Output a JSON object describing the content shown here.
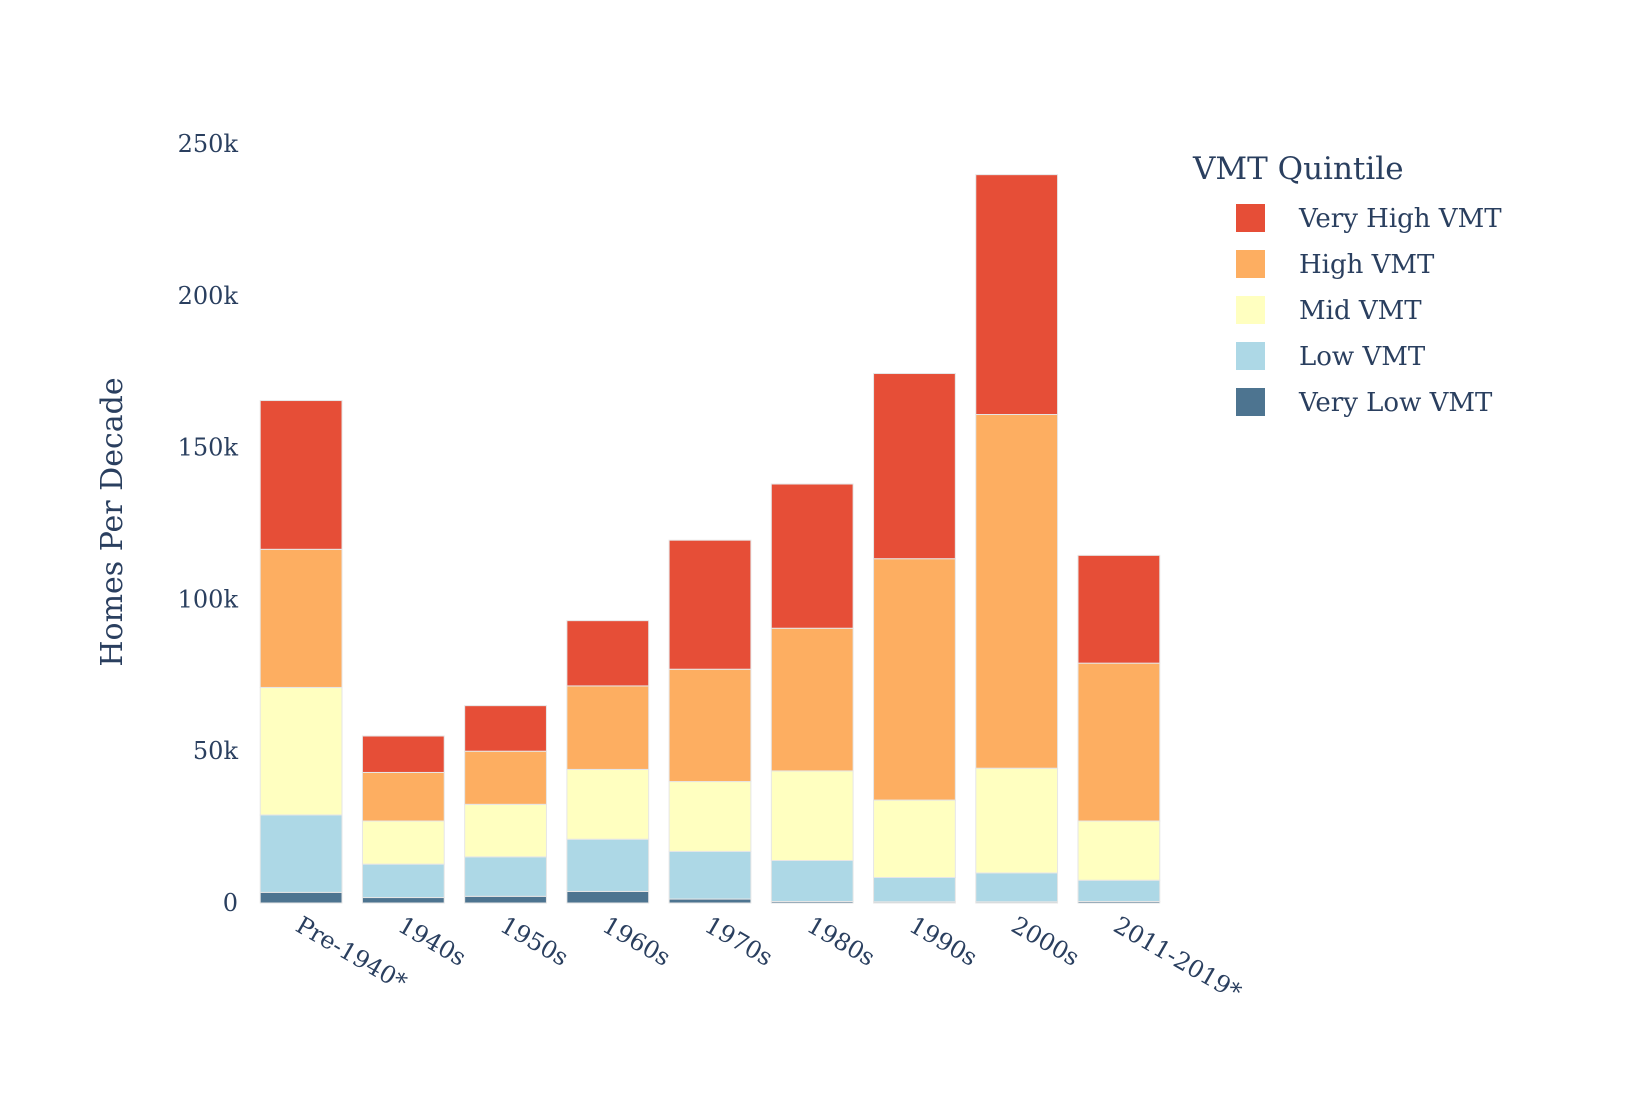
{
  "chart_data": {
    "type": "bar",
    "stacked": true,
    "title": "",
    "xlabel": "",
    "ylabel": "Homes Per Decade",
    "ylim": [
      0,
      250000
    ],
    "yticks": [
      {
        "value": 0,
        "label": "0"
      },
      {
        "value": 50000,
        "label": "50k"
      },
      {
        "value": 100000,
        "label": "100k"
      },
      {
        "value": 150000,
        "label": "150k"
      },
      {
        "value": 200000,
        "label": "200k"
      },
      {
        "value": 250000,
        "label": "250k"
      }
    ],
    "categories": [
      "Pre-1940*",
      "1940s",
      "1950s",
      "1960s",
      "1970s",
      "1980s",
      "1990s",
      "2000s",
      "2011-2019*"
    ],
    "legend_title": "VMT Quintile",
    "series": [
      {
        "name": "Very Low VMT",
        "color": "#4d7490",
        "values": [
          3500,
          1800,
          2200,
          3800,
          1300,
          500,
          400,
          400,
          500
        ]
      },
      {
        "name": "Low VMT",
        "color": "#add8e6",
        "values": [
          25500,
          11000,
          13000,
          17200,
          15700,
          13500,
          8000,
          9500,
          7000
        ]
      },
      {
        "name": "Mid VMT",
        "color": "#ffffc0",
        "values": [
          42000,
          14200,
          17300,
          23000,
          23000,
          29500,
          25500,
          34500,
          19500
        ]
      },
      {
        "name": "High VMT",
        "color": "#fdae61",
        "values": [
          45500,
          16000,
          17500,
          27500,
          37000,
          47000,
          79500,
          116500,
          52000
        ]
      },
      {
        "name": "Very High VMT",
        "color": "#e64e37",
        "values": [
          49000,
          12000,
          15000,
          21500,
          42500,
          47500,
          61000,
          79000,
          35500
        ]
      }
    ]
  }
}
